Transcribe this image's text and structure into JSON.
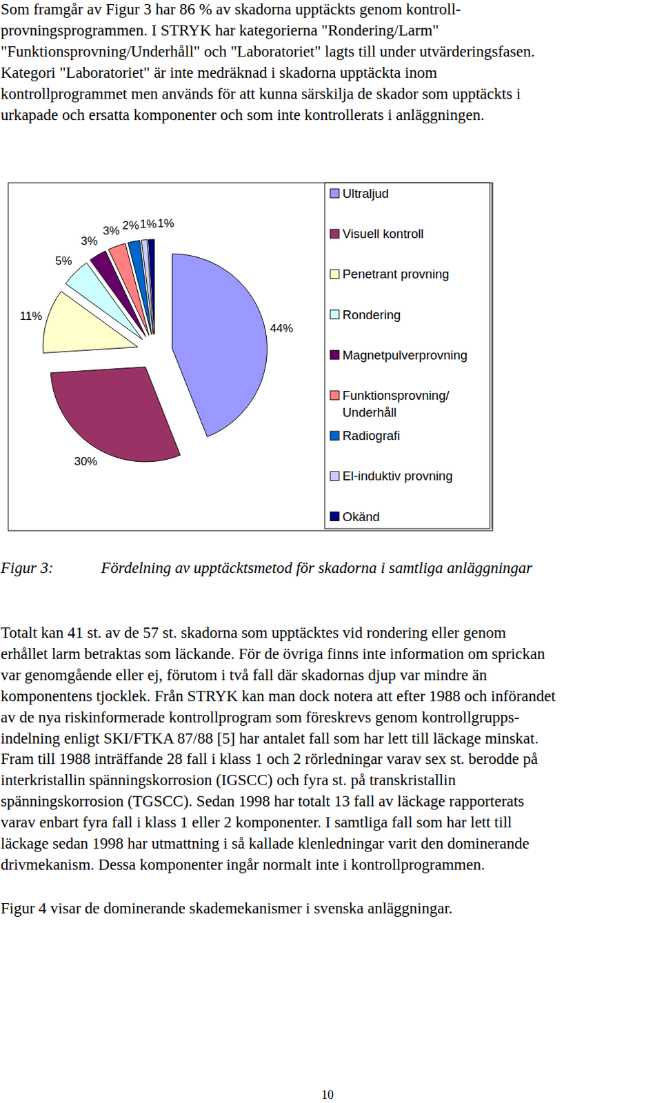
{
  "text_top": [
    "Som framgår av Figur 3 har 86 % av skadorna upptäckts genom kontroll-",
    "provningsprogrammen. I STRYK har kategorierna \"Rondering/Larm\"",
    "\"Funktionsprovning/Underhåll\" och \"Laboratoriet\" lagts till under utvärderingsfasen.",
    "Kategori \"Laboratoriet\" är inte medräknad i skadorna upptäckta inom",
    "kontrollprogrammet men används för att kunna särskilja de skador som upptäckts i",
    "urkapade och ersatta komponenter och som inte kontrollerats i anläggningen."
  ],
  "chart_data": {
    "type": "pie",
    "categories": [
      "Ultraljud",
      "Visuell kontroll",
      "Penetrant provning",
      "Rondering",
      "Magnetpulverprovning",
      "Funktionsprovning/ Underhåll",
      "Radiografi",
      "El-induktiv provning",
      "Okänd"
    ],
    "values": [
      44,
      30,
      11,
      5,
      3,
      3,
      2,
      1,
      1
    ],
    "value_labels": [
      "44%",
      "30%",
      "11%",
      "5%",
      "3%",
      "3%",
      "2%",
      "1%",
      "1%"
    ],
    "colors": [
      "#9999ff",
      "#993366",
      "#ffffcc",
      "#ccffff",
      "#660066",
      "#ff8080",
      "#0066cc",
      "#ccccff",
      "#000080"
    ],
    "data_labels": true,
    "legend": "right"
  },
  "caption": {
    "label": "Figur 3:",
    "text": "Fördelning av upptäcktsmetod för skadorna i samtliga anläggningar"
  },
  "text_bottom": [
    "Totalt kan 41 st. av de 57 st. skadorna som upptäcktes vid rondering eller genom",
    "erhållet larm betraktas som läckande. För de övriga finns inte information om sprickan",
    "var genomgående eller ej, förutom i två fall där skadornas djup var mindre än",
    "komponentens tjocklek. Från STRYK kan man dock notera att efter 1988 och införandet",
    "av de nya riskinformerade kontrollprogram som föreskrevs genom kontrollgrupps-",
    "indelning enligt SKI/FTKA 87/88 [5] har antalet fall som har lett till läckage minskat.",
    "Fram till 1988 inträffande 28 fall i klass 1 och 2 rörledningar varav sex st. berodde på",
    "interkristallin spänningskorrosion (IGSCC) och fyra st. på transkristallin",
    "spänningskorrosion (TGSCC). Sedan 1998 har totalt 13 fall av läckage rapporterats",
    "varav enbart fyra fall i klass 1 eller 2 komponenter. I samtliga fall som har lett till",
    "läckage sedan 1998 har utmattning i så kallade klenledningar varit den dominerande",
    "drivmekanism. Dessa komponenter ingår normalt inte i kontrollprogrammen."
  ],
  "text_last": "Figur 4 visar de dominerande skademekanismer i svenska anläggningar.",
  "page_number": "10"
}
